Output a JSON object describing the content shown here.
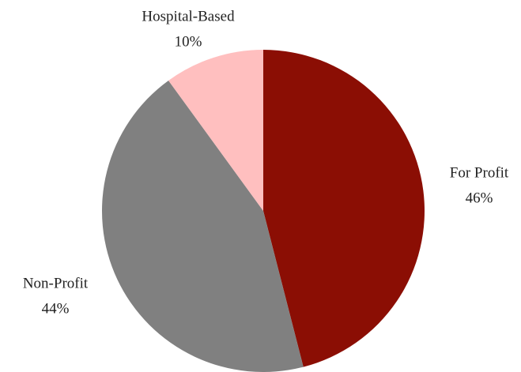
{
  "chart_data": {
    "type": "pie",
    "categories": [
      "For Profit",
      "Non-Profit",
      "Hospital-Based"
    ],
    "values": [
      46,
      44,
      10
    ],
    "value_labels": [
      "46%",
      "44%",
      "10%"
    ],
    "colors": [
      "#8b0e04",
      "#808080",
      "#ffbfbf"
    ]
  }
}
